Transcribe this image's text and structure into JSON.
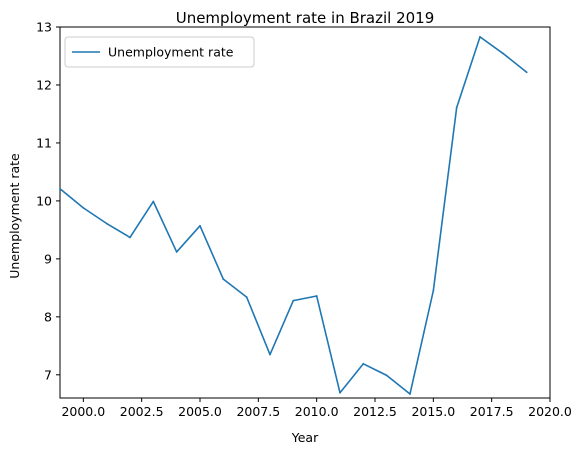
{
  "chart_data": {
    "type": "line",
    "title": "Unemployment rate in Brazil 2019",
    "xlabel": "Year",
    "ylabel": "Unemployment rate",
    "xlim": [
      1999,
      2020
    ],
    "ylim": [
      6.6,
      13
    ],
    "xticks": [
      "2000.0",
      "2002.5",
      "2005.0",
      "2007.5",
      "2010.0",
      "2012.5",
      "2015.0",
      "2017.5",
      "2020.0"
    ],
    "yticks": [
      "7",
      "8",
      "9",
      "10",
      "11",
      "12",
      "13"
    ],
    "grid": false,
    "legend_position": "top-left",
    "series": [
      {
        "name": "Unemployment rate",
        "color": "#1f77b4",
        "x": [
          1999,
          2000,
          2001,
          2002,
          2003,
          2004,
          2005,
          2006,
          2007,
          2008,
          2009,
          2010,
          2011,
          2012,
          2013,
          2014,
          2015,
          2016,
          2017,
          2018,
          2019
        ],
        "y": [
          10.21,
          9.88,
          9.61,
          9.37,
          9.99,
          9.12,
          9.57,
          8.65,
          8.34,
          7.35,
          8.28,
          8.36,
          6.69,
          7.19,
          6.99,
          6.67,
          8.45,
          11.61,
          12.83,
          12.54,
          12.22
        ]
      }
    ]
  }
}
